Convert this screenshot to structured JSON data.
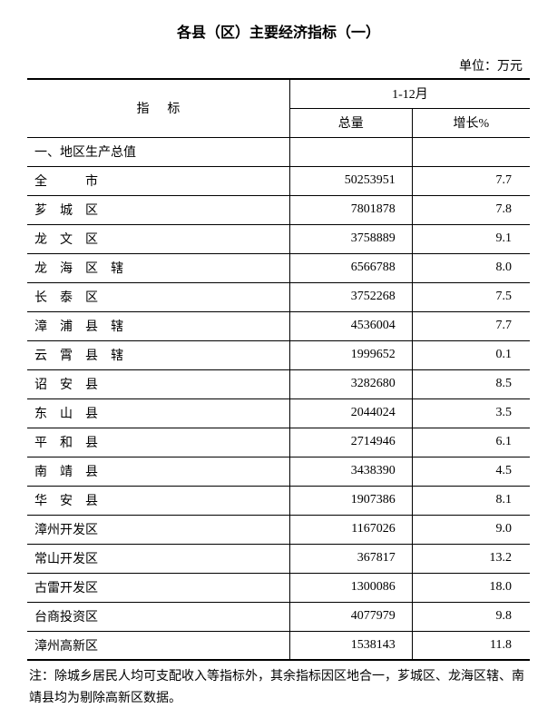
{
  "title": "各县（区）主要经济指标（一）",
  "unit_label": "单位：万元",
  "header": {
    "indicator": "指标",
    "period": "1-12月",
    "total": "总量",
    "growth": "增长%"
  },
  "section_header": "一、地区生产总值",
  "rows": [
    {
      "name": "全　　　市",
      "total": "50253951",
      "growth": "7.7"
    },
    {
      "name": "芗　城　区",
      "total": "7801878",
      "growth": "7.8"
    },
    {
      "name": "龙　文　区",
      "total": "3758889",
      "growth": "9.1"
    },
    {
      "name": "龙　海　区　辖",
      "total": "6566788",
      "growth": "8.0"
    },
    {
      "name": "长　泰　区",
      "total": "3752268",
      "growth": "7.5"
    },
    {
      "name": "漳　浦　县　辖",
      "total": "4536004",
      "growth": "7.7"
    },
    {
      "name": "云　霄　县　辖",
      "total": "1999652",
      "growth": "0.1"
    },
    {
      "name": "诏　安　县",
      "total": "3282680",
      "growth": "8.5"
    },
    {
      "name": "东　山　县",
      "total": "2044024",
      "growth": "3.5"
    },
    {
      "name": "平　和　县",
      "total": "2714946",
      "growth": "6.1"
    },
    {
      "name": "南　靖　县",
      "total": "3438390",
      "growth": "4.5"
    },
    {
      "name": "华　安　县",
      "total": "1907386",
      "growth": "8.1"
    },
    {
      "name": "漳州开发区",
      "total": "1167026",
      "growth": "9.0"
    },
    {
      "name": "常山开发区",
      "total": "367817",
      "growth": "13.2"
    },
    {
      "name": "古雷开发区",
      "total": "1300086",
      "growth": "18.0"
    },
    {
      "name": "台商投资区",
      "total": "4077979",
      "growth": "9.8"
    },
    {
      "name": "漳州高新区",
      "total": "1538143",
      "growth": "11.8"
    }
  ],
  "note": "注：除城乡居民人均可支配收入等指标外，其余指标因区地合一，芗城区、龙海区辖、南靖县均为剔除高新区数据。"
}
